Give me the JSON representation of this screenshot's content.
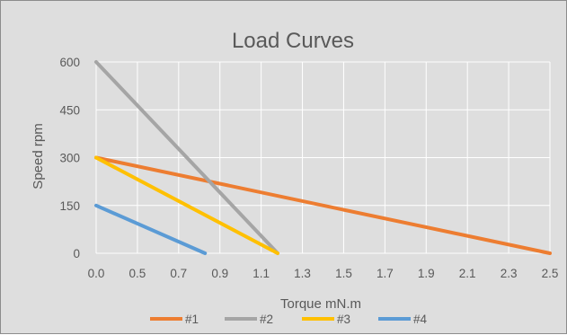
{
  "chart_data": {
    "type": "line",
    "title": "Load Curves",
    "xlabel": "Torque mN.m",
    "ylabel": "Speed rpm",
    "xlim": [
      0,
      2.5
    ],
    "ylim": [
      0,
      600
    ],
    "x_tick_labels": [
      "0.0",
      "0.5",
      "0.7",
      "0.9",
      "1.1",
      "1.3",
      "1.5",
      "1.7",
      "1.9",
      "2.1",
      "2.3",
      "2.5"
    ],
    "y_tick_labels": [
      "0",
      "150",
      "300",
      "450",
      "600"
    ],
    "grid": true,
    "legend_position": "bottom",
    "series": [
      {
        "name": "#1",
        "color": "#ed7d31",
        "points": [
          [
            0.0,
            300
          ],
          [
            2.5,
            0
          ]
        ]
      },
      {
        "name": "#2",
        "color": "#a5a5a5",
        "points": [
          [
            0.0,
            600
          ],
          [
            1.0,
            0
          ]
        ]
      },
      {
        "name": "#3",
        "color": "#ffc000",
        "points": [
          [
            0.0,
            300
          ],
          [
            1.0,
            0
          ]
        ]
      },
      {
        "name": "#4",
        "color": "#5b9bd5",
        "points": [
          [
            0.0,
            150
          ],
          [
            0.6,
            0
          ]
        ]
      }
    ]
  }
}
